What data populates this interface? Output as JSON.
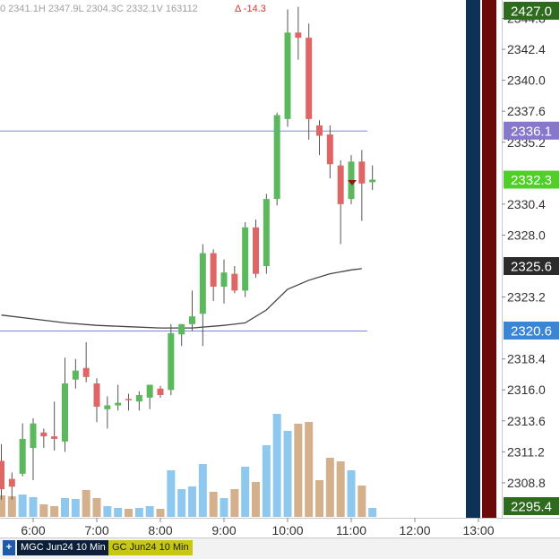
{
  "header": {
    "ohlc_text": "0 2341.1H 2347.9L 2304.3C 2332.1V 163112",
    "change_text": "Δ -14.3"
  },
  "tabs": {
    "plus_label": "+",
    "tab1_label": "MGC Jun24 10 Min",
    "tab2_label": "GC Jun24 10 Min"
  },
  "colors": {
    "up": "#5cb85c",
    "down": "#e06666",
    "vol_up": "#8ec8ee",
    "vol_down": "#d4b08c",
    "level_line": "#7b87d6",
    "ma_line": "#444444",
    "panel_navy": "#0e3255",
    "panel_maroon": "#6b0a0a"
  },
  "chart_data": {
    "type": "candlestick",
    "price_axis": {
      "ticks": [
        "2344.8",
        "2342.4",
        "2340.0",
        "2337.6",
        "2335.2",
        "2330.4",
        "2328.0",
        "2323.2",
        "2318.4",
        "2316.0",
        "2313.6",
        "2311.2",
        "2308.8"
      ],
      "ylim": [
        2306.5,
        2345.5
      ]
    },
    "time_axis": {
      "ticks": [
        "6:00",
        "7:00",
        "8:00",
        "9:00",
        "10:00",
        "11:00",
        "12:00",
        "13:00"
      ]
    },
    "price_labels": [
      {
        "text": "2427.0",
        "bg": "#2e6b1e",
        "fg": "#ffffff"
      },
      {
        "text": "2336.1",
        "bg": "#8878cc",
        "fg": "#ffffff"
      },
      {
        "text": "2332.3",
        "bg": "#4fcf28",
        "fg": "#ffffff"
      },
      {
        "text": "2325.6",
        "bg": "#2b2b2b",
        "fg": "#ffffff"
      },
      {
        "text": "2320.6",
        "bg": "#3a86d4",
        "fg": "#ffffff"
      },
      {
        "text": "2295.4",
        "bg": "#2e6b1e",
        "fg": "#ffffff"
      }
    ],
    "levels": [
      2336.1,
      2320.6
    ],
    "moving_average": [
      [
        "5:30",
        2321.8
      ],
      [
        "6:00",
        2321.5
      ],
      [
        "6:30",
        2321.2
      ],
      [
        "7:00",
        2321.0
      ],
      [
        "7:30",
        2320.9
      ],
      [
        "8:00",
        2320.8
      ],
      [
        "8:30",
        2320.8
      ],
      [
        "9:00",
        2321.0
      ],
      [
        "9:20",
        2321.2
      ],
      [
        "9:40",
        2322.2
      ],
      [
        "10:00",
        2323.8
      ],
      [
        "10:20",
        2324.5
      ],
      [
        "10:40",
        2325.0
      ],
      [
        "11:00",
        2325.3
      ],
      [
        "11:10",
        2325.4
      ]
    ],
    "candles": [
      {
        "t": "5:30",
        "o": 2310.5,
        "h": 2311.8,
        "l": 2307.5,
        "c": 2308.3
      },
      {
        "t": "5:40",
        "o": 2309.1,
        "h": 2309.6,
        "l": 2307.5,
        "c": 2308.5
      },
      {
        "t": "5:50",
        "o": 2309.5,
        "h": 2313.4,
        "l": 2309.3,
        "c": 2312.2
      },
      {
        "t": "6:00",
        "o": 2311.5,
        "h": 2313.8,
        "l": 2309.0,
        "c": 2313.4
      },
      {
        "t": "6:10",
        "o": 2312.7,
        "h": 2313.0,
        "l": 2311.5,
        "c": 2312.4
      },
      {
        "t": "6:20",
        "o": 2312.4,
        "h": 2315.1,
        "l": 2311.3,
        "c": 2312.2
      },
      {
        "t": "6:30",
        "o": 2312.0,
        "h": 2318.5,
        "l": 2311.2,
        "c": 2316.5
      },
      {
        "t": "6:40",
        "o": 2316.8,
        "h": 2318.4,
        "l": 2316.1,
        "c": 2317.5
      },
      {
        "t": "6:50",
        "o": 2317.7,
        "h": 2319.7,
        "l": 2316.6,
        "c": 2317.0
      },
      {
        "t": "7:00",
        "o": 2316.5,
        "h": 2316.9,
        "l": 2313.5,
        "c": 2314.7
      },
      {
        "t": "7:10",
        "o": 2314.5,
        "h": 2315.5,
        "l": 2313.0,
        "c": 2314.8
      },
      {
        "t": "7:20",
        "o": 2314.8,
        "h": 2316.4,
        "l": 2314.4,
        "c": 2315.0
      },
      {
        "t": "7:30",
        "o": 2315.3,
        "h": 2315.7,
        "l": 2314.4,
        "c": 2315.2
      },
      {
        "t": "7:40",
        "o": 2315.1,
        "h": 2315.9,
        "l": 2314.4,
        "c": 2315.6
      },
      {
        "t": "7:50",
        "o": 2315.4,
        "h": 2316.4,
        "l": 2314.5,
        "c": 2316.4
      },
      {
        "t": "8:00",
        "o": 2316.1,
        "h": 2316.3,
        "l": 2315.4,
        "c": 2315.6
      },
      {
        "t": "8:10",
        "o": 2316.0,
        "h": 2321.1,
        "l": 2315.6,
        "c": 2320.4
      },
      {
        "t": "8:20",
        "o": 2320.3,
        "h": 2321.1,
        "l": 2319.4,
        "c": 2321.1
      },
      {
        "t": "8:30",
        "o": 2321.1,
        "h": 2323.7,
        "l": 2320.6,
        "c": 2321.7
      },
      {
        "t": "8:40",
        "o": 2321.9,
        "h": 2327.3,
        "l": 2319.4,
        "c": 2326.6
      },
      {
        "t": "8:50",
        "o": 2326.6,
        "h": 2326.9,
        "l": 2322.9,
        "c": 2324.0
      },
      {
        "t": "9:00",
        "o": 2324.0,
        "h": 2326.1,
        "l": 2322.7,
        "c": 2325.1
      },
      {
        "t": "9:10",
        "o": 2325.0,
        "h": 2325.6,
        "l": 2323.5,
        "c": 2323.7
      },
      {
        "t": "9:20",
        "o": 2323.7,
        "h": 2329.0,
        "l": 2323.2,
        "c": 2328.6
      },
      {
        "t": "9:30",
        "o": 2328.6,
        "h": 2329.2,
        "l": 2324.7,
        "c": 2325.0
      },
      {
        "t": "9:40",
        "o": 2325.6,
        "h": 2331.2,
        "l": 2325.0,
        "c": 2330.8
      },
      {
        "t": "9:50",
        "o": 2330.8,
        "h": 2337.5,
        "l": 2330.3,
        "c": 2337.3
      },
      {
        "t": "10:00",
        "o": 2337.0,
        "h": 2345.5,
        "l": 2336.4,
        "c": 2343.7
      },
      {
        "t": "10:10",
        "o": 2343.7,
        "h": 2345.7,
        "l": 2341.6,
        "c": 2343.3
      },
      {
        "t": "10:20",
        "o": 2343.3,
        "h": 2344.4,
        "l": 2335.4,
        "c": 2337.0
      },
      {
        "t": "10:30",
        "o": 2336.5,
        "h": 2336.9,
        "l": 2334.2,
        "c": 2335.7
      },
      {
        "t": "10:40",
        "o": 2335.8,
        "h": 2336.5,
        "l": 2332.4,
        "c": 2333.5
      },
      {
        "t": "10:50",
        "o": 2333.4,
        "h": 2333.8,
        "l": 2327.3,
        "c": 2330.4
      },
      {
        "t": "11:00",
        "o": 2330.8,
        "h": 2334.2,
        "l": 2330.4,
        "c": 2333.7
      },
      {
        "t": "11:10",
        "o": 2333.7,
        "h": 2334.6,
        "l": 2329.1,
        "c": 2332.0
      },
      {
        "t": "11:20",
        "o": 2332.1,
        "h": 2333.4,
        "l": 2331.5,
        "c": 2332.3
      }
    ],
    "volume": [
      {
        "t": "5:30",
        "v": 24,
        "d": "down"
      },
      {
        "t": "5:40",
        "v": 23,
        "d": "down"
      },
      {
        "t": "5:50",
        "v": 25,
        "d": "up"
      },
      {
        "t": "6:00",
        "v": 22,
        "d": "up"
      },
      {
        "t": "6:10",
        "v": 14,
        "d": "down"
      },
      {
        "t": "6:20",
        "v": 12,
        "d": "down"
      },
      {
        "t": "6:30",
        "v": 21,
        "d": "up"
      },
      {
        "t": "6:40",
        "v": 20,
        "d": "up"
      },
      {
        "t": "6:50",
        "v": 30,
        "d": "down"
      },
      {
        "t": "7:00",
        "v": 21,
        "d": "down"
      },
      {
        "t": "7:10",
        "v": 12,
        "d": "up"
      },
      {
        "t": "7:20",
        "v": 10,
        "d": "up"
      },
      {
        "t": "7:30",
        "v": 9,
        "d": "down"
      },
      {
        "t": "7:40",
        "v": 10,
        "d": "up"
      },
      {
        "t": "7:50",
        "v": 12,
        "d": "up"
      },
      {
        "t": "8:00",
        "v": 9,
        "d": "down"
      },
      {
        "t": "8:10",
        "v": 52,
        "d": "up"
      },
      {
        "t": "8:20",
        "v": 31,
        "d": "up"
      },
      {
        "t": "8:30",
        "v": 34,
        "d": "up"
      },
      {
        "t": "8:40",
        "v": 59,
        "d": "up"
      },
      {
        "t": "8:50",
        "v": 28,
        "d": "down"
      },
      {
        "t": "9:00",
        "v": 21,
        "d": "up"
      },
      {
        "t": "9:10",
        "v": 31,
        "d": "down"
      },
      {
        "t": "9:20",
        "v": 56,
        "d": "up"
      },
      {
        "t": "9:30",
        "v": 39,
        "d": "down"
      },
      {
        "t": "9:40",
        "v": 80,
        "d": "up"
      },
      {
        "t": "9:50",
        "v": 115,
        "d": "up"
      },
      {
        "t": "10:00",
        "v": 96,
        "d": "up"
      },
      {
        "t": "10:10",
        "v": 104,
        "d": "down"
      },
      {
        "t": "10:20",
        "v": 106,
        "d": "down"
      },
      {
        "t": "10:30",
        "v": 41,
        "d": "down"
      },
      {
        "t": "10:40",
        "v": 66,
        "d": "down"
      },
      {
        "t": "10:50",
        "v": 62,
        "d": "down"
      },
      {
        "t": "11:00",
        "v": 52,
        "d": "up"
      },
      {
        "t": "11:10",
        "v": 35,
        "d": "down"
      },
      {
        "t": "11:20",
        "v": 10,
        "d": "up"
      }
    ]
  }
}
